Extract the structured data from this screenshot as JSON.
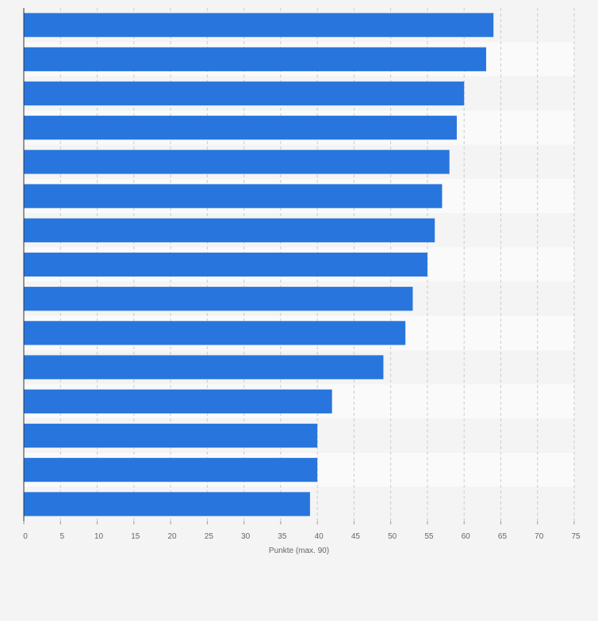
{
  "chart_data": {
    "type": "bar",
    "orientation": "horizontal",
    "categories": [
      "",
      "",
      "",
      "",
      "",
      "",
      "",
      "",
      "",
      "",
      "",
      "",
      "",
      "",
      ""
    ],
    "values": [
      64,
      63,
      60,
      59,
      58,
      57,
      56,
      55,
      53,
      52,
      49,
      42,
      40,
      40,
      39
    ],
    "xlabel": "Punkte (max. 90)",
    "ylabel": "",
    "xlim": [
      0,
      75
    ],
    "xticks": [
      0,
      5,
      10,
      15,
      20,
      25,
      30,
      35,
      40,
      45,
      50,
      55,
      60,
      65,
      70,
      75
    ],
    "bar_color": "#2876dd",
    "grid": true,
    "legend": "none"
  }
}
